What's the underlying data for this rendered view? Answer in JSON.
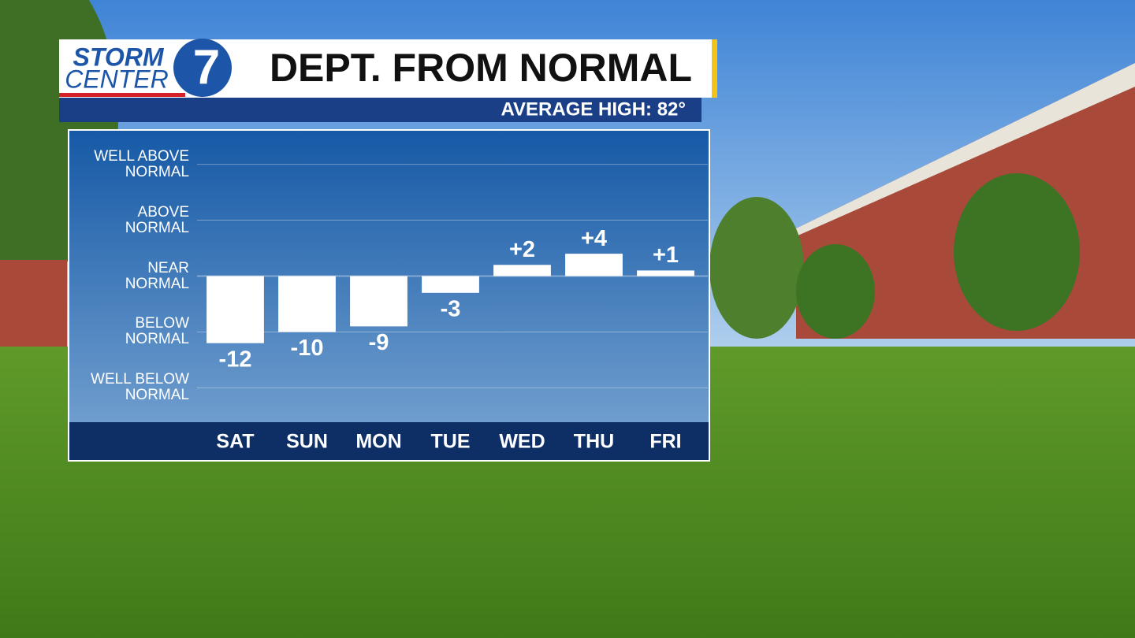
{
  "logo": {
    "line1": "STORM",
    "line2": "CENTER",
    "number": "7"
  },
  "chart_data": {
    "type": "bar",
    "title": "DEPT. FROM NORMAL",
    "subtitle": "AVERAGE HIGH: 82°",
    "categories": [
      "SAT",
      "SUN",
      "MON",
      "TUE",
      "WED",
      "THU",
      "FRI"
    ],
    "values": [
      -12,
      -10,
      -9,
      -3,
      2,
      4,
      1
    ],
    "value_labels": [
      "-12",
      "-10",
      "-9",
      "-3",
      "+2",
      "+4",
      "+1"
    ],
    "color": "#ffffff",
    "ylim": [
      -26,
      26
    ],
    "yticks": [
      {
        "value": 20,
        "label": "WELL ABOVE\nNORMAL"
      },
      {
        "value": 10,
        "label": "ABOVE\nNORMAL"
      },
      {
        "value": 0,
        "label": "NEAR\nNORMAL"
      },
      {
        "value": -10,
        "label": "BELOW\nNORMAL"
      },
      {
        "value": -20,
        "label": "WELL BELOW\nNORMAL"
      }
    ],
    "grid": true
  }
}
